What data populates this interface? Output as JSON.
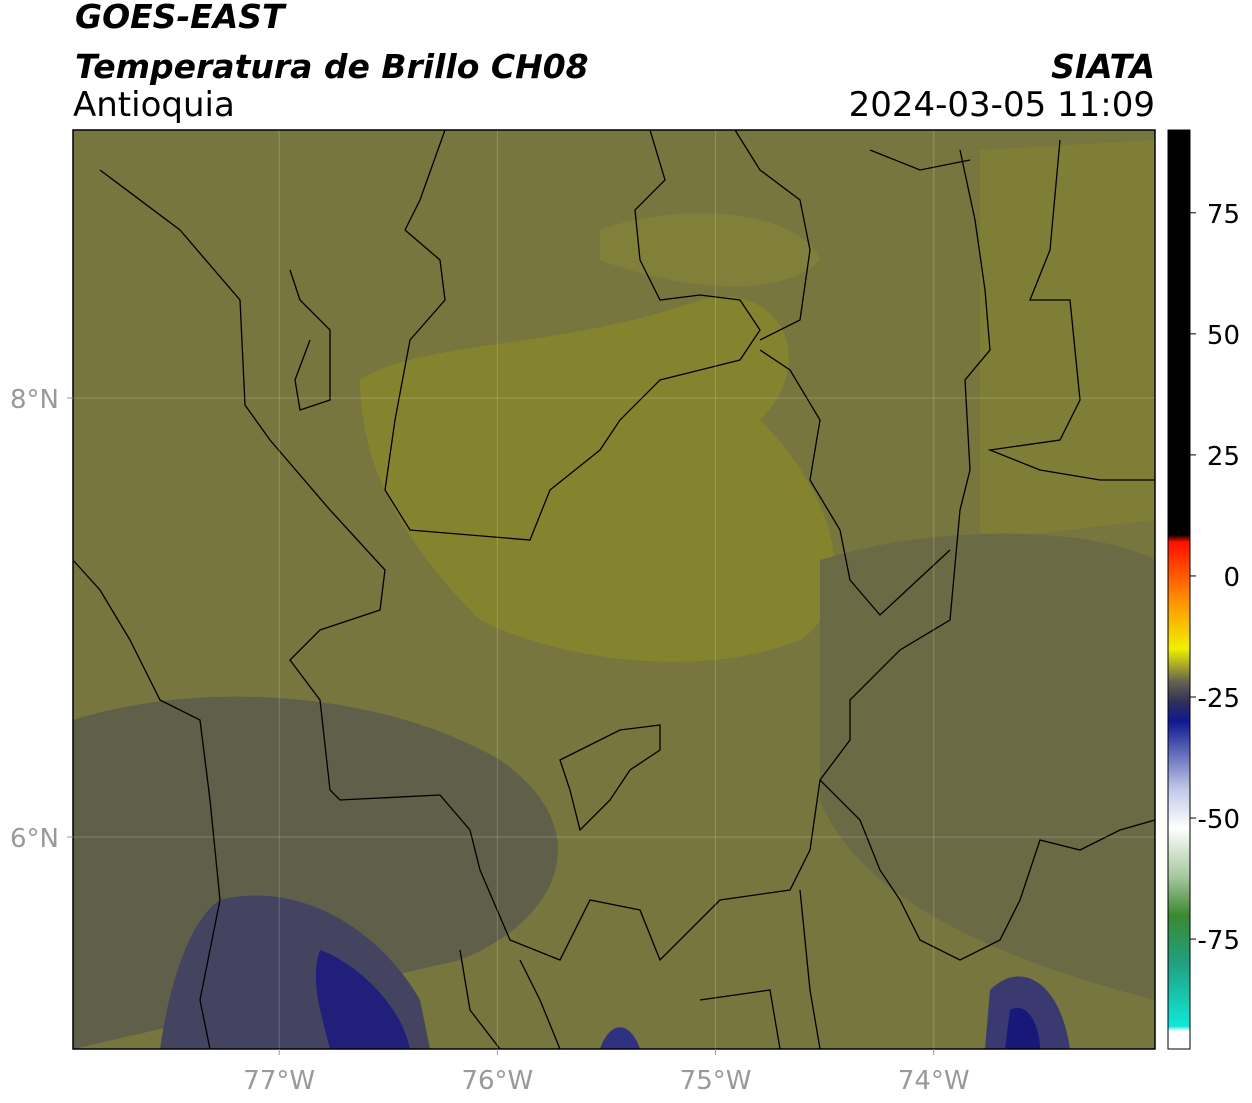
{
  "header": {
    "title": "GOES-EAST",
    "subtitle": "Temperatura de Brillo CH08",
    "region": "Antioquia",
    "source": "SIATA",
    "timestamp": "2024-03-05 11:09"
  },
  "map": {
    "xlim": [
      -77.945,
      -72.986
    ],
    "ylim": [
      5.034,
      9.221
    ],
    "xticks": [
      {
        "value": -77,
        "label": "77°W"
      },
      {
        "value": -76,
        "label": "76°W"
      },
      {
        "value": -75,
        "label": "75°W"
      },
      {
        "value": -74,
        "label": "74°W"
      }
    ],
    "yticks": [
      {
        "value": 8,
        "label": "8°N"
      },
      {
        "value": 6,
        "label": "6°N"
      }
    ],
    "grid": true
  },
  "colorbar": {
    "clim": [
      -97.7,
      92.1
    ],
    "ticks": [
      75,
      50,
      25,
      0,
      -25,
      -50,
      -75
    ],
    "colormap": [
      {
        "value": -97.7,
        "color": "#ffffff"
      },
      {
        "value": -94,
        "color": "#ffffff"
      },
      {
        "value": -93,
        "color": "#10e8d8"
      },
      {
        "value": -80,
        "color": "#20a080"
      },
      {
        "value": -70,
        "color": "#3a8a30"
      },
      {
        "value": -62,
        "color": "#a8c8a0"
      },
      {
        "value": -52,
        "color": "#ffffff"
      },
      {
        "value": -44,
        "color": "#c0c8e8"
      },
      {
        "value": -30,
        "color": "#101890"
      },
      {
        "value": -26,
        "color": "#303058"
      },
      {
        "value": -22,
        "color": "#606050"
      },
      {
        "value": -15,
        "color": "#f0f000"
      },
      {
        "value": -5,
        "color": "#ff9000"
      },
      {
        "value": 7,
        "color": "#ff1000"
      },
      {
        "value": 8.5,
        "color": "#000000"
      },
      {
        "value": 92.1,
        "color": "#000000"
      }
    ]
  }
}
